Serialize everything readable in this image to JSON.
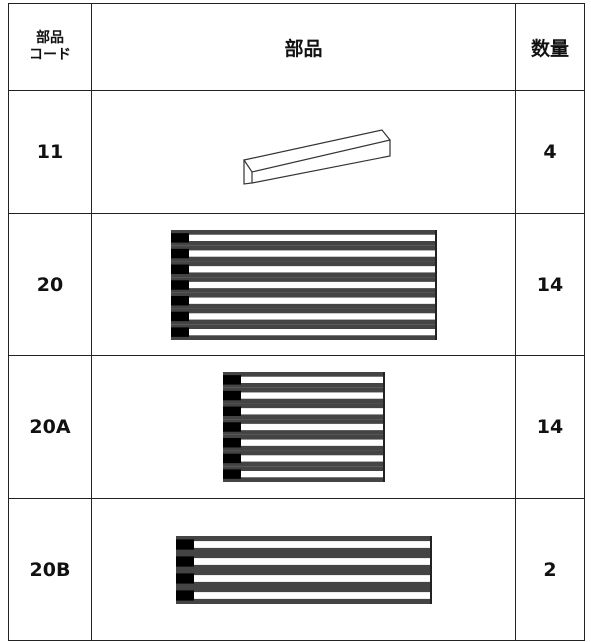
{
  "table": {
    "header": [
      [
        "部品",
        "コード"
      ],
      "部品",
      "数量"
    ],
    "rows": [
      [
        "11",
        4
      ],
      [
        "20",
        14
      ],
      [
        "20A",
        14
      ],
      [
        "20B",
        2
      ]
    ]
  }
}
